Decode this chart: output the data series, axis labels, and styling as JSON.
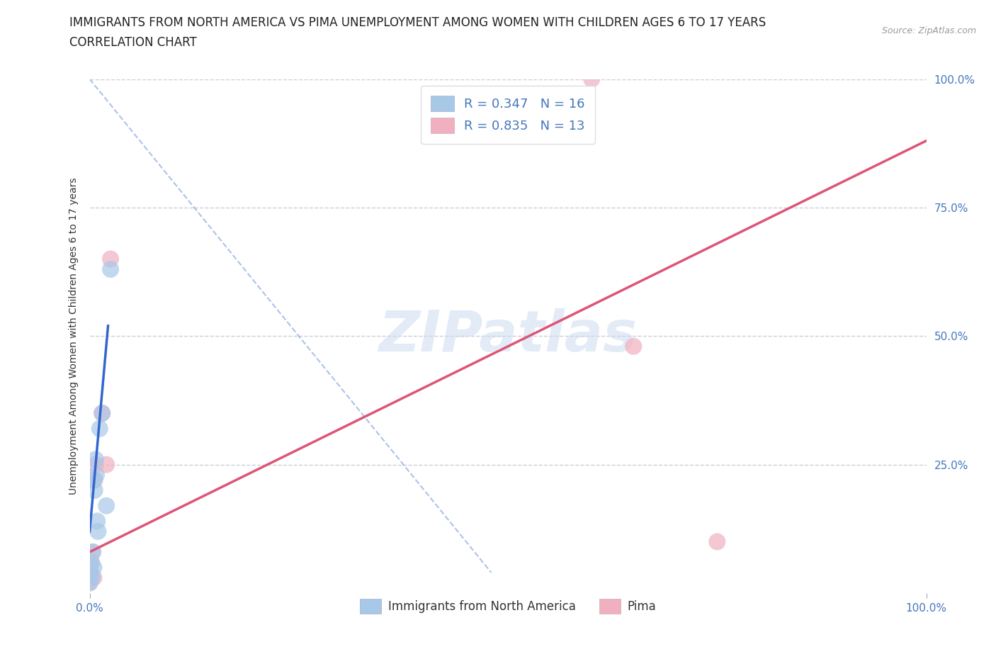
{
  "title_line1": "IMMIGRANTS FROM NORTH AMERICA VS PIMA UNEMPLOYMENT AMONG WOMEN WITH CHILDREN AGES 6 TO 17 YEARS",
  "title_line2": "CORRELATION CHART",
  "source": "Source: ZipAtlas.com",
  "ylabel": "Unemployment Among Women with Children Ages 6 to 17 years",
  "watermark": "ZIPatlas",
  "blue_points_x": [
    0.0,
    0.001,
    0.002,
    0.003,
    0.004,
    0.005,
    0.005,
    0.006,
    0.007,
    0.008,
    0.009,
    0.01,
    0.012,
    0.015,
    0.02,
    0.025
  ],
  "blue_points_y": [
    0.02,
    0.04,
    0.06,
    0.03,
    0.08,
    0.05,
    0.22,
    0.2,
    0.26,
    0.23,
    0.14,
    0.12,
    0.32,
    0.35,
    0.17,
    0.63
  ],
  "pink_points_x": [
    0.0,
    0.001,
    0.002,
    0.003,
    0.005,
    0.006,
    0.007,
    0.015,
    0.02,
    0.025,
    0.6,
    0.65,
    0.75
  ],
  "pink_points_y": [
    0.02,
    0.04,
    0.06,
    0.08,
    0.03,
    0.22,
    0.25,
    0.35,
    0.25,
    0.65,
    1.0,
    0.48,
    0.1
  ],
  "blue_R": 0.347,
  "blue_N": 16,
  "pink_R": 0.835,
  "pink_N": 13,
  "blue_color": "#a8c8e8",
  "pink_color": "#f0b0c0",
  "blue_line_color": "#3366cc",
  "pink_line_color": "#dd5577",
  "blue_trend_x": [
    0.0,
    0.022
  ],
  "blue_trend_y": [
    0.12,
    0.52
  ],
  "pink_trend_x": [
    0.0,
    1.0
  ],
  "pink_trend_y": [
    0.08,
    0.88
  ],
  "dashed_line_x": [
    0.0,
    0.48
  ],
  "dashed_line_y": [
    1.0,
    0.04
  ],
  "xlim": [
    0.0,
    1.0
  ],
  "ylim": [
    0.0,
    1.0
  ],
  "xtick_positions": [
    0.0,
    1.0
  ],
  "xtick_labels": [
    "0.0%",
    "100.0%"
  ],
  "ytick_positions": [
    0.25,
    0.5,
    0.75,
    1.0
  ],
  "ytick_right_labels": [
    "25.0%",
    "50.0%",
    "75.0%",
    "100.0%"
  ],
  "grid_color": "#ccccdd",
  "background_color": "#ffffff",
  "legend_label_blue": "Immigrants from North America",
  "legend_label_pink": "Pima",
  "title_fontsize": 12,
  "label_fontsize": 10,
  "tick_fontsize": 11,
  "accent_color": "#4477bb"
}
